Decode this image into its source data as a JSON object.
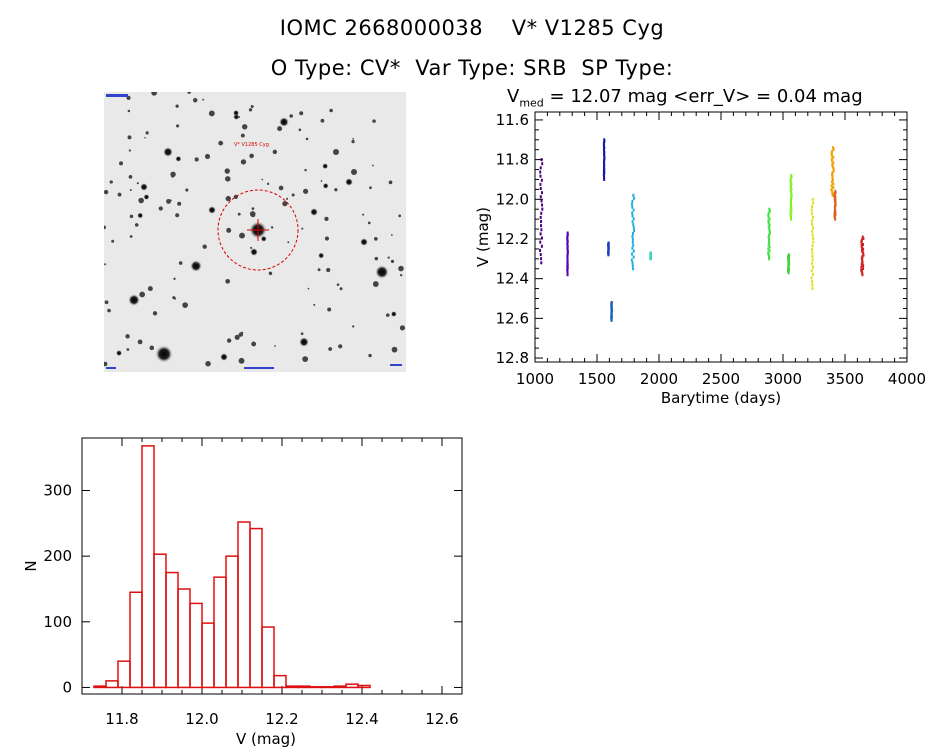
{
  "header": {
    "line1": "IOMC 2668000038    V* V1285 Cyg",
    "line2": "O Type: CV*  Var Type: SRB  SP Type:"
  },
  "finder_chart": {
    "target_label": "V* V1285 Cyg"
  },
  "lightcurve_title": {
    "prefix": "V",
    "subscript": "med",
    "rest": " = 12.07 mag <err_V> = 0.04 mag"
  },
  "chart_data": [
    {
      "type": "scatter",
      "name": "lightcurve",
      "xlabel": "Barytime (days)",
      "ylabel": "V (mag)",
      "xlim": [
        1000,
        4000
      ],
      "ylim": [
        12.82,
        11.56
      ],
      "xticks": [
        1000,
        1500,
        2000,
        2500,
        3000,
        3500,
        4000
      ],
      "yticks": [
        11.6,
        11.8,
        12.0,
        12.2,
        12.4,
        12.6,
        12.8
      ],
      "series": [
        {
          "name": "seg1",
          "color": "#4b0082",
          "x": [
            1040,
            1060
          ],
          "y": [
            11.8,
            12.32
          ]
        },
        {
          "name": "seg2",
          "color": "#5a00b0",
          "x": [
            1260,
            1265
          ],
          "y": [
            12.17,
            12.38
          ]
        },
        {
          "name": "seg3",
          "color": "#1a1a9a",
          "x": [
            1555,
            1560
          ],
          "y": [
            11.7,
            11.9
          ]
        },
        {
          "name": "seg4",
          "color": "#2040c0",
          "x": [
            1590,
            1595
          ],
          "y": [
            12.22,
            12.28
          ]
        },
        {
          "name": "seg5",
          "color": "#1560b0",
          "x": [
            1615,
            1620
          ],
          "y": [
            12.52,
            12.61
          ]
        },
        {
          "name": "seg6",
          "color": "#20b0e0",
          "x": [
            1780,
            1800
          ],
          "y": [
            11.98,
            12.35
          ]
        },
        {
          "name": "seg7",
          "color": "#40d0c0",
          "x": [
            1930,
            1935
          ],
          "y": [
            12.27,
            12.3
          ]
        },
        {
          "name": "seg8",
          "color": "#40e040",
          "x": [
            2880,
            2895
          ],
          "y": [
            12.05,
            12.3
          ]
        },
        {
          "name": "seg9",
          "color": "#40d040",
          "x": [
            3040,
            3050
          ],
          "y": [
            12.28,
            12.37
          ]
        },
        {
          "name": "seg10",
          "color": "#80f020",
          "x": [
            3060,
            3070
          ],
          "y": [
            11.88,
            12.1
          ]
        },
        {
          "name": "seg11",
          "color": "#e0e020",
          "x": [
            3230,
            3245
          ],
          "y": [
            12.0,
            12.45
          ]
        },
        {
          "name": "seg12",
          "color": "#f0a000",
          "x": [
            3390,
            3410
          ],
          "y": [
            11.74,
            11.98
          ]
        },
        {
          "name": "seg13",
          "color": "#e06020",
          "x": [
            3415,
            3425
          ],
          "y": [
            11.96,
            12.1
          ]
        },
        {
          "name": "seg14",
          "color": "#d02020",
          "x": [
            3630,
            3650
          ],
          "y": [
            12.19,
            12.38
          ]
        }
      ]
    },
    {
      "type": "bar",
      "name": "histogram",
      "xlabel": "V (mag)",
      "ylabel": "N",
      "xlim": [
        11.7,
        12.65
      ],
      "ylim": [
        -10,
        380
      ],
      "xticks": [
        11.8,
        12.0,
        12.2,
        12.4,
        12.6
      ],
      "xtick_labels": [
        "11.8",
        "12.0",
        "12.2",
        "12.4",
        "12.6"
      ],
      "yticks": [
        0,
        100,
        200,
        300
      ],
      "bin_starts": [
        11.73,
        11.76,
        11.79,
        11.82,
        11.85,
        11.88,
        11.91,
        11.94,
        11.97,
        12.0,
        12.03,
        12.06,
        12.09,
        12.12,
        12.15,
        12.18,
        12.21,
        12.24,
        12.27,
        12.3,
        12.33,
        12.36,
        12.39,
        12.42,
        12.45,
        12.48,
        12.51,
        12.54,
        12.57
      ],
      "bin_width": 0.03,
      "values": [
        2,
        10,
        40,
        145,
        368,
        203,
        175,
        150,
        128,
        98,
        168,
        200,
        252,
        242,
        92,
        18,
        2,
        2,
        1,
        1,
        2,
        5,
        3,
        0,
        0,
        0,
        0,
        0,
        0
      ],
      "color": "#dd1111"
    }
  ]
}
